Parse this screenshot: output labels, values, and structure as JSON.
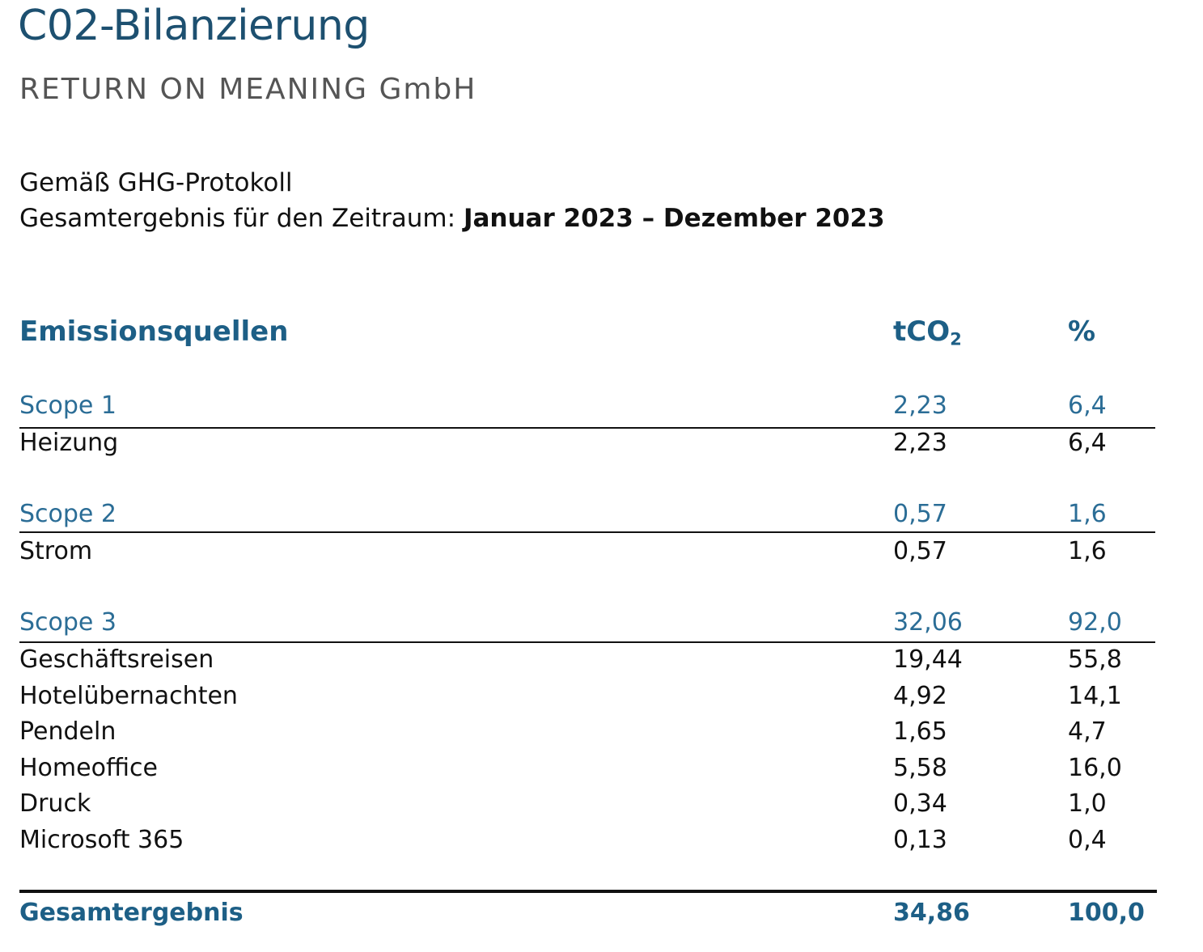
{
  "title": "C02-Bilanzierung",
  "company": "RETURN ON MEANING GmbH",
  "protocol": "Gemäß GHG-Protokoll",
  "period_label": "Gesamtergebnis für den Zeitraum:",
  "period_value": "Januar 2023 – Dezember 2023",
  "table": {
    "header_source": "Emissionsquellen",
    "header_unit": "tCO",
    "header_unit_sub": "2",
    "header_pct": "%",
    "scope1": {
      "label": "Scope 1",
      "value": "2,23",
      "pct": "6,4",
      "items": [
        {
          "label": "Heizung",
          "value": "2,23",
          "pct": "6,4"
        }
      ]
    },
    "scope2": {
      "label": "Scope 2",
      "value": "0,57",
      "pct": "1,6",
      "items": [
        {
          "label": "Strom",
          "value": "0,57",
          "pct": "1,6"
        }
      ]
    },
    "scope3": {
      "label": "Scope 3",
      "value": "32,06",
      "pct": "92,0",
      "items": [
        {
          "label": "Geschäftsreisen",
          "value": "19,44",
          "pct": "55,8"
        },
        {
          "label": "Hotelübernachten",
          "value": "4,92",
          "pct": "14,1"
        },
        {
          "label": "Pendeln",
          "value": "1,65",
          "pct": "4,7"
        },
        {
          "label": "Homeoffice",
          "value": "5,58",
          "pct": "16,0"
        },
        {
          "label": "Druck",
          "value": "0,34",
          "pct": "1,0"
        },
        {
          "label": "Microsoft 365",
          "value": "0,13",
          "pct": "0,4"
        }
      ]
    },
    "total": {
      "label": "Gesamtergebnis",
      "value": "34,86",
      "pct": "100,0"
    }
  }
}
